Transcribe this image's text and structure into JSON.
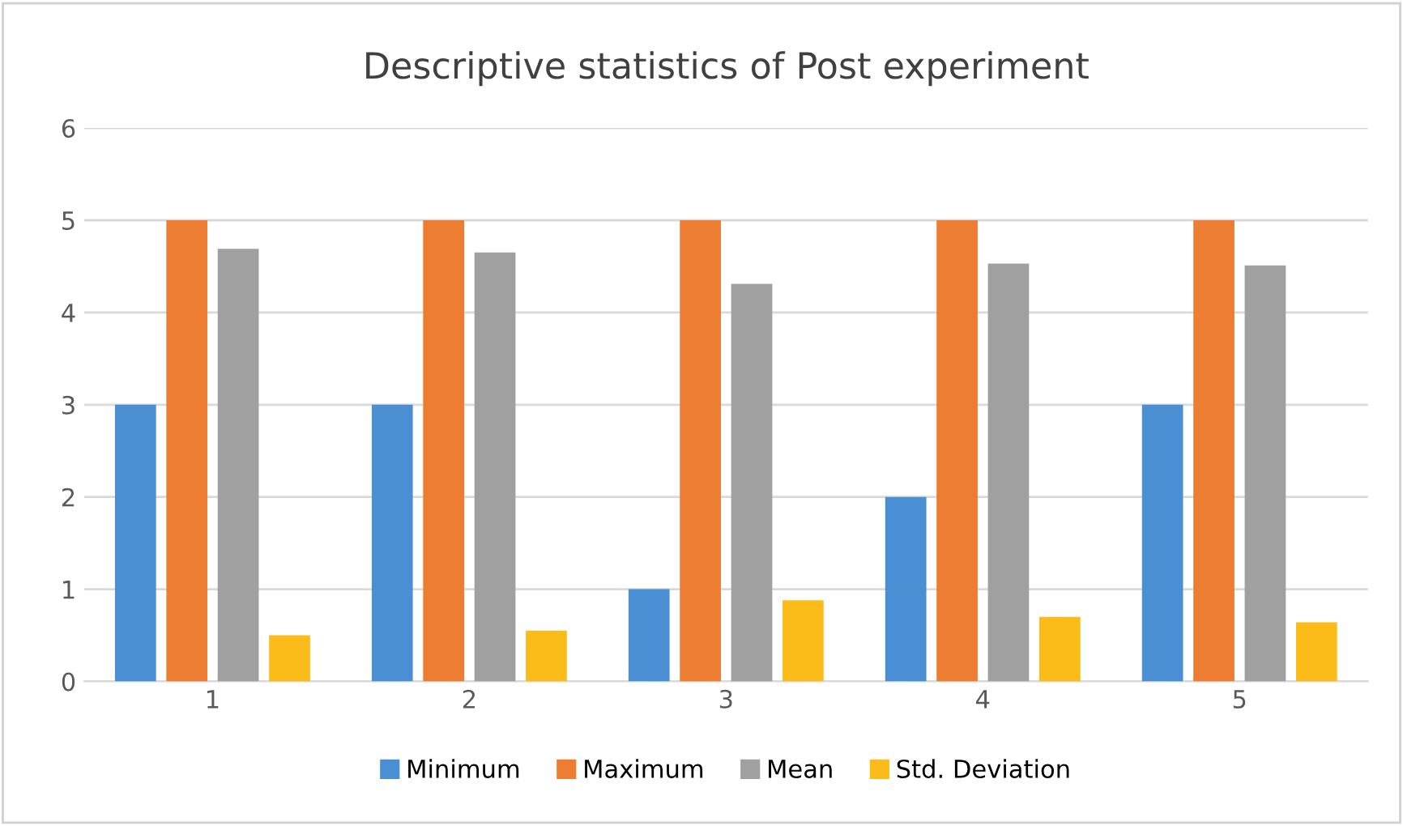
{
  "chart_data": {
    "type": "bar",
    "title": "Descriptive statistics of Post experiment",
    "categories": [
      "1",
      "2",
      "3",
      "4",
      "5"
    ],
    "series": [
      {
        "name": "Minimum",
        "color": "#4a8fd4",
        "values": [
          3,
          3,
          1,
          2,
          3
        ]
      },
      {
        "name": "Maximum",
        "color": "#ee7d34",
        "values": [
          5,
          5,
          5,
          5,
          5
        ]
      },
      {
        "name": "Mean",
        "color": "#a0a0a0",
        "values": [
          4.69,
          4.65,
          4.31,
          4.53,
          4.51
        ]
      },
      {
        "name": "Std. Deviation",
        "color": "#fbbc1a",
        "values": [
          0.5,
          0.55,
          0.88,
          0.7,
          0.64
        ]
      }
    ],
    "ylim": [
      0,
      6
    ],
    "yticks": [
      0,
      1,
      2,
      3,
      4,
      5,
      6
    ],
    "grid": "y",
    "legend": "bottom"
  }
}
